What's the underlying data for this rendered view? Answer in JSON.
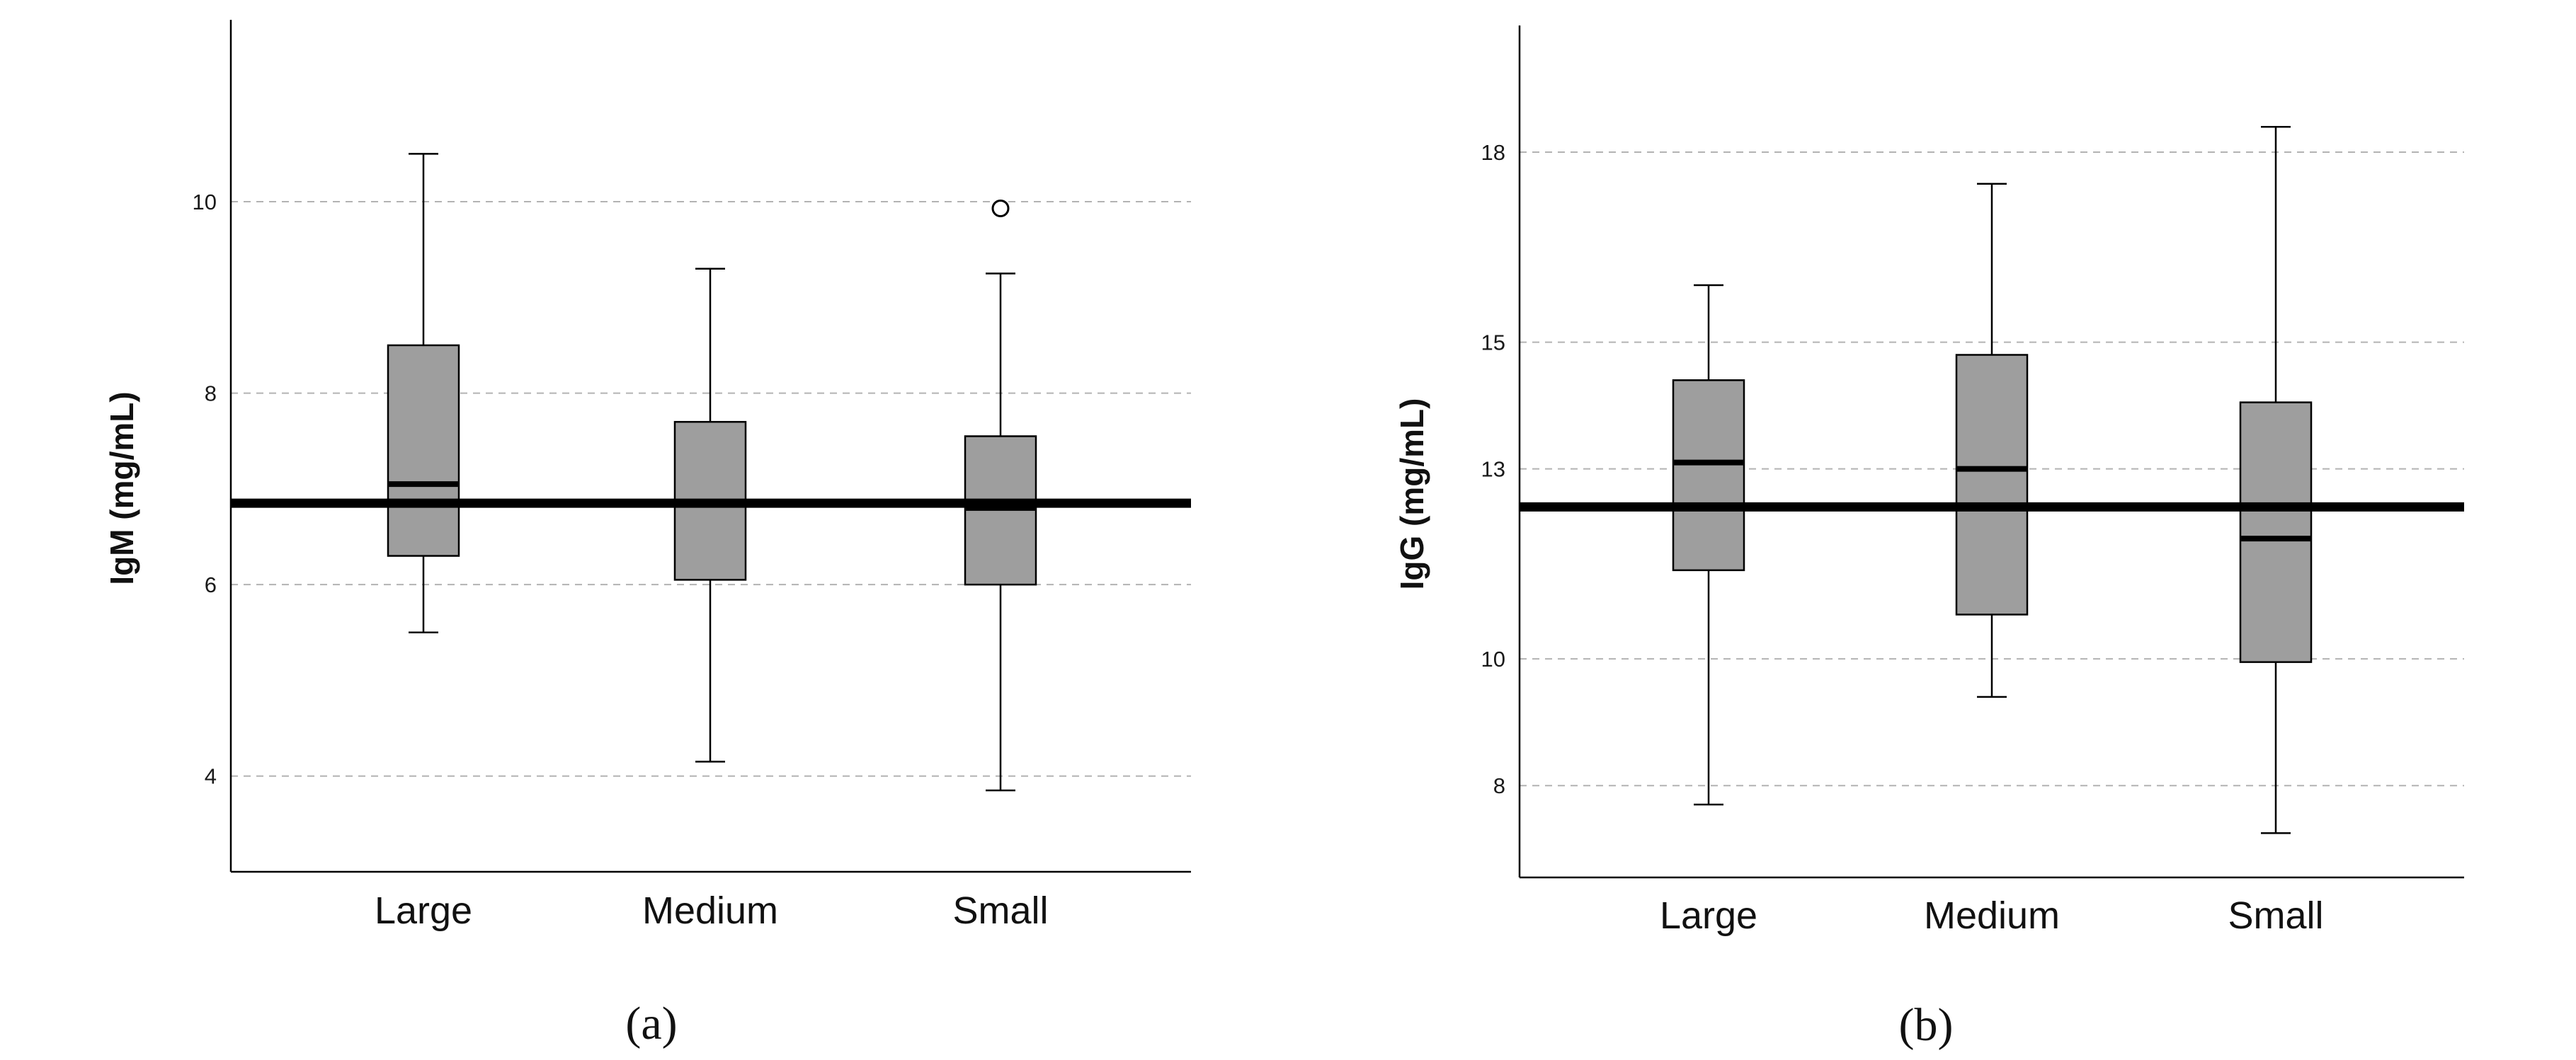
{
  "chart_data": [
    {
      "type": "boxplot",
      "caption": "(a)",
      "ylabel": "IgM (mg/mL)",
      "categories": [
        "Large",
        "Medium",
        "Small"
      ],
      "ylim": [
        3.0,
        11.9
      ],
      "yticks": [
        4,
        6,
        8,
        10
      ],
      "ytick_labels": [
        "4",
        "6",
        "8",
        "10"
      ],
      "grid": "horizontal dashed",
      "reference_line": 6.85,
      "boxes": [
        {
          "category": "Large",
          "min": 5.5,
          "q1": 6.3,
          "median": 7.05,
          "q3": 8.5,
          "max": 10.5
        },
        {
          "category": "Medium",
          "min": 4.15,
          "q1": 6.05,
          "median": 6.85,
          "q3": 7.7,
          "max": 9.3
        },
        {
          "category": "Small",
          "min": 3.85,
          "q1": 6.0,
          "median": 6.8,
          "q3": 7.55,
          "max": 9.25
        }
      ],
      "outliers": [
        {
          "category": "Small",
          "value": 9.93
        }
      ],
      "colors": {
        "box": "#9e9e9e",
        "line": "#000000",
        "grid": "#b3b3b3"
      }
    },
    {
      "type": "boxplot",
      "caption": "(b)",
      "ylabel": "IgG (mg/mL)",
      "categories": [
        "Large",
        "Medium",
        "Small"
      ],
      "ylim": [
        6.55,
        20.0
      ],
      "yticks": [
        8,
        10,
        13,
        15,
        18
      ],
      "ytick_labels": [
        "8",
        "10",
        "13",
        "15",
        "18"
      ],
      "grid": "horizontal dashed",
      "reference_line": 12.4,
      "boxes": [
        {
          "category": "Large",
          "min": 7.7,
          "q1": 11.4,
          "median": 13.1,
          "q3": 14.4,
          "max": 15.9
        },
        {
          "category": "Medium",
          "min": 9.4,
          "q1": 10.7,
          "median": 13.0,
          "q3": 14.8,
          "max": 17.5
        },
        {
          "category": "Small",
          "min": 7.25,
          "q1": 9.95,
          "median": 11.9,
          "q3": 14.05,
          "max": 18.4
        }
      ],
      "outliers": [],
      "colors": {
        "box": "#9e9e9e",
        "line": "#000000",
        "grid": "#b3b3b3"
      }
    }
  ]
}
